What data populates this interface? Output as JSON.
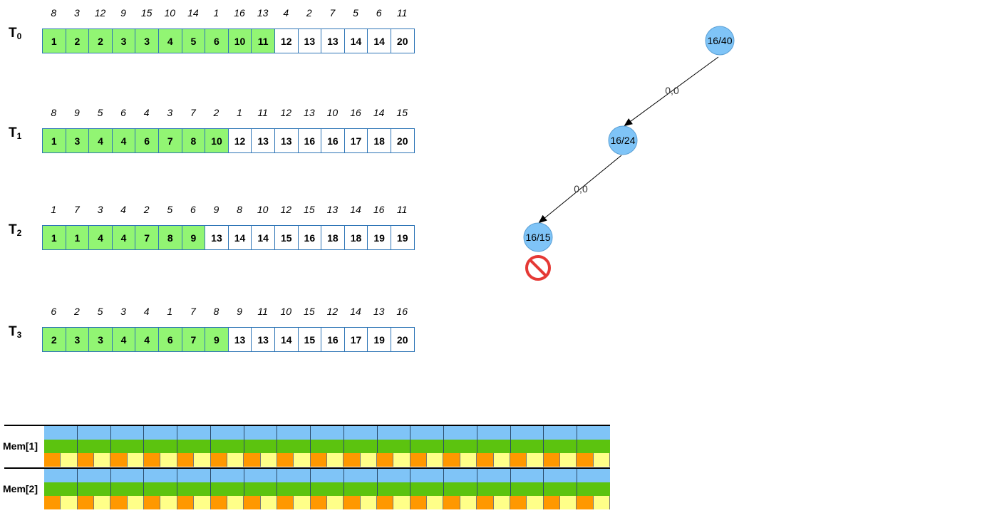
{
  "rows": [
    {
      "label": "T",
      "sub": "0",
      "indices": [
        "8",
        "3",
        "12",
        "9",
        "15",
        "10",
        "14",
        "1",
        "16",
        "13",
        "4",
        "2",
        "7",
        "5",
        "6",
        "11"
      ],
      "values": [
        "1",
        "2",
        "2",
        "3",
        "3",
        "4",
        "5",
        "6",
        "10",
        "11",
        "12",
        "13",
        "13",
        "14",
        "14",
        "20"
      ],
      "green_count": 10
    },
    {
      "label": "T",
      "sub": "1",
      "indices": [
        "8",
        "9",
        "5",
        "6",
        "4",
        "3",
        "7",
        "2",
        "1",
        "11",
        "12",
        "13",
        "10",
        "16",
        "14",
        "15"
      ],
      "values": [
        "1",
        "3",
        "4",
        "4",
        "6",
        "7",
        "8",
        "10",
        "12",
        "13",
        "13",
        "16",
        "16",
        "17",
        "18",
        "20"
      ],
      "green_count": 8
    },
    {
      "label": "T",
      "sub": "2",
      "indices": [
        "1",
        "7",
        "3",
        "4",
        "2",
        "5",
        "6",
        "9",
        "8",
        "10",
        "12",
        "15",
        "13",
        "14",
        "16",
        "11"
      ],
      "values": [
        "1",
        "1",
        "4",
        "4",
        "7",
        "8",
        "9",
        "13",
        "14",
        "14",
        "15",
        "16",
        "18",
        "18",
        "19",
        "19"
      ],
      "green_count": 7
    },
    {
      "label": "T",
      "sub": "3",
      "indices": [
        "6",
        "2",
        "5",
        "3",
        "4",
        "1",
        "7",
        "8",
        "9",
        "11",
        "10",
        "15",
        "12",
        "14",
        "13",
        "16"
      ],
      "values": [
        "2",
        "3",
        "3",
        "4",
        "4",
        "6",
        "7",
        "9",
        "13",
        "13",
        "14",
        "15",
        "16",
        "17",
        "19",
        "20"
      ],
      "green_count": 8
    }
  ],
  "tree": {
    "nodes": [
      {
        "label": "16/40"
      },
      {
        "label": "16/24"
      },
      {
        "label": "16/15"
      }
    ],
    "edges": [
      {
        "label": "0,0"
      },
      {
        "label": "0,0"
      }
    ],
    "stop_icon": "prohibited-icon"
  },
  "memory": [
    {
      "label": "Mem[1]",
      "segments": 17
    },
    {
      "label": "Mem[2]",
      "segments": 17
    }
  ],
  "colors": {
    "hit": "#92f573",
    "cell_border": "#2e75b6",
    "node_fill": "#7fc4f7",
    "mem_blue": "#7fc4f7",
    "mem_green": "#5cc30f",
    "mem_orange": "#ff9800",
    "mem_yellow": "#ffff88",
    "stop_red": "#e53935"
  }
}
